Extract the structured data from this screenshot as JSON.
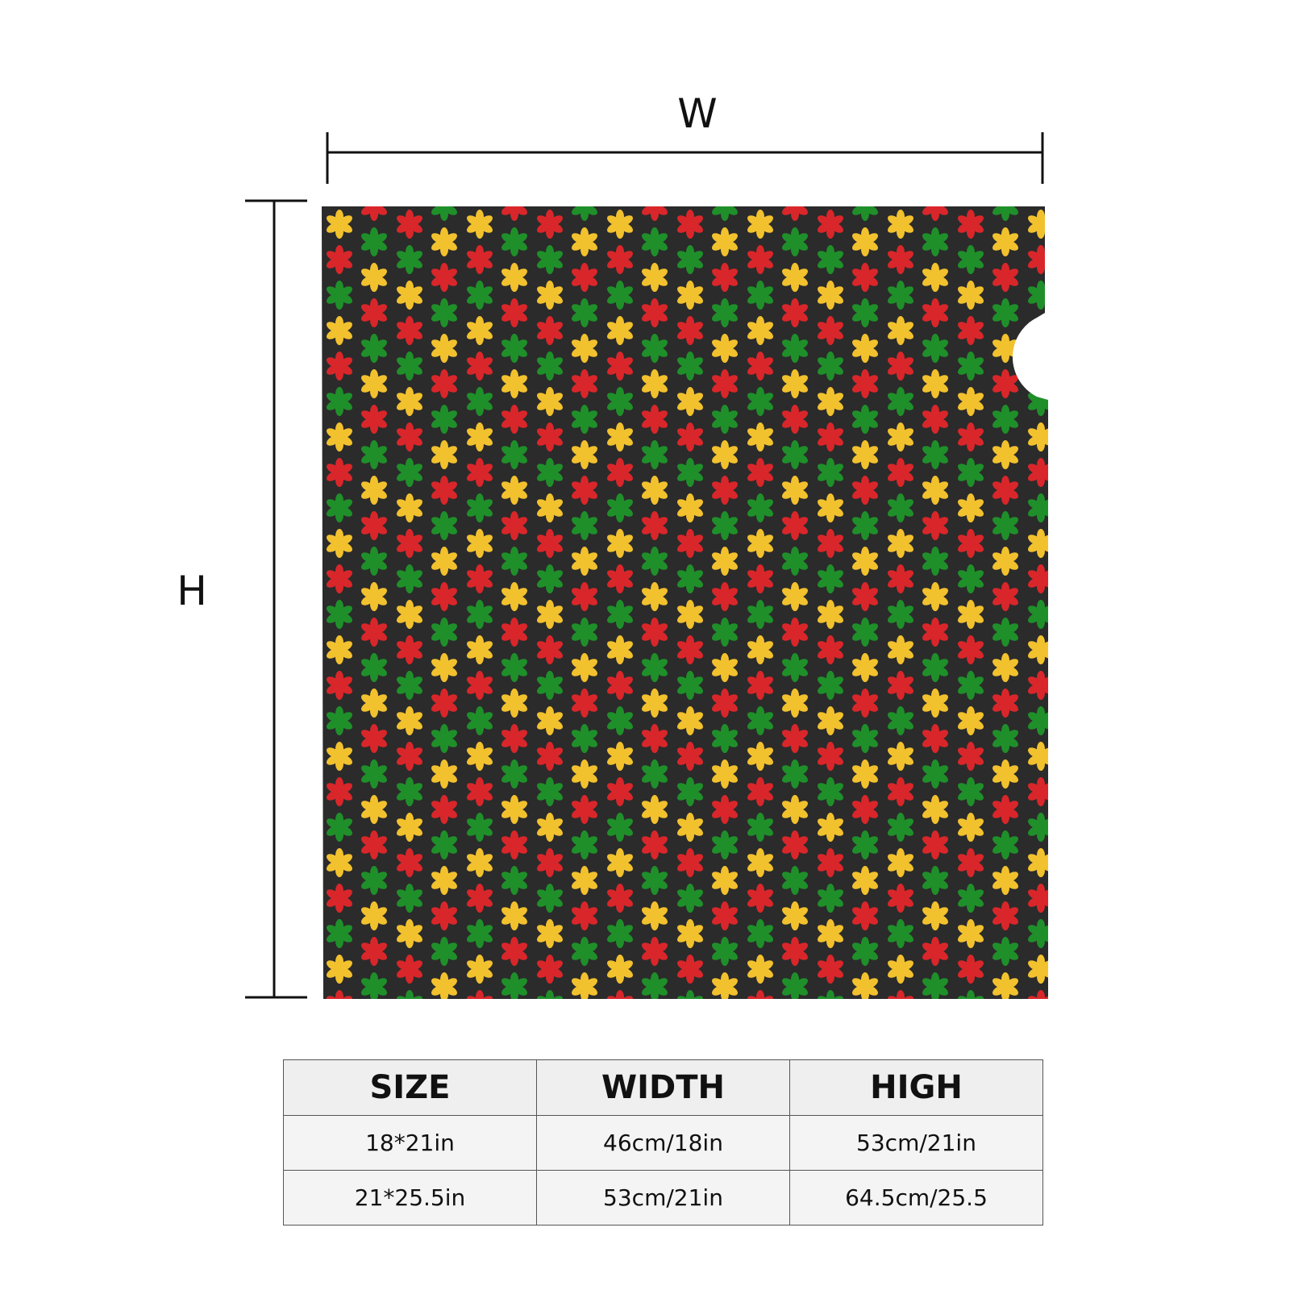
{
  "dimensions": {
    "width_label": "W",
    "height_label": "H"
  },
  "table": {
    "headers": [
      "SIZE",
      "WIDTH",
      "HIGH"
    ],
    "rows": [
      [
        "18*21in",
        "46cm/18in",
        "53cm/21in"
      ],
      [
        "21*25.5in",
        "53cm/21in",
        "64.5cm/25.5"
      ]
    ]
  }
}
